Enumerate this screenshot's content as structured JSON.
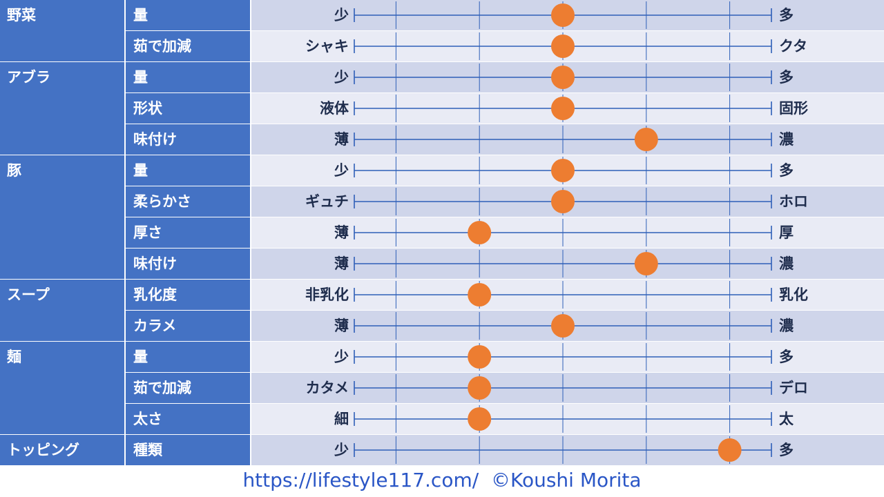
{
  "colors": {
    "header_bg": "#4472c4",
    "row_dark": "#cfd5ea",
    "row_light": "#e9ebf5",
    "axis_line": "#2e5fb8",
    "marker": "#ed7d31",
    "label_text": "#1f2d4d"
  },
  "footer": {
    "url": "https://lifestyle117.com/",
    "credit": "©Koushi Morita"
  },
  "chart_data": {
    "type": "scatter",
    "scale_min": 0,
    "scale_max": 5,
    "ticks": [
      0,
      0.5,
      1.5,
      2.5,
      3.5,
      4.5,
      5
    ],
    "groups": [
      {
        "label": "野菜",
        "items": [
          {
            "label": "量",
            "min_label": "少",
            "max_label": "多",
            "value": 2.5
          },
          {
            "label": "茹で加減",
            "min_label": "シャキ",
            "max_label": "クタ",
            "value": 2.5
          }
        ]
      },
      {
        "label": "アブラ",
        "items": [
          {
            "label": "量",
            "min_label": "少",
            "max_label": "多",
            "value": 2.5
          },
          {
            "label": "形状",
            "min_label": "液体",
            "max_label": "固形",
            "value": 2.5
          },
          {
            "label": "味付け",
            "min_label": "薄",
            "max_label": "濃",
            "value": 3.5
          }
        ]
      },
      {
        "label": "豚",
        "items": [
          {
            "label": "量",
            "min_label": "少",
            "max_label": "多",
            "value": 2.5
          },
          {
            "label": "柔らかさ",
            "min_label": "ギュチ",
            "max_label": "ホロ",
            "value": 2.5
          },
          {
            "label": "厚さ",
            "min_label": "薄",
            "max_label": "厚",
            "value": 1.5
          },
          {
            "label": "味付け",
            "min_label": "薄",
            "max_label": "濃",
            "value": 3.5
          }
        ]
      },
      {
        "label": "スープ",
        "items": [
          {
            "label": "乳化度",
            "min_label": "非乳化",
            "max_label": "乳化",
            "value": 1.5
          },
          {
            "label": "カラメ",
            "min_label": "薄",
            "max_label": "濃",
            "value": 2.5
          }
        ]
      },
      {
        "label": "麺",
        "items": [
          {
            "label": "量",
            "min_label": "少",
            "max_label": "多",
            "value": 1.5
          },
          {
            "label": "茹で加減",
            "min_label": "カタメ",
            "max_label": "デロ",
            "value": 1.5
          },
          {
            "label": "太さ",
            "min_label": "細",
            "max_label": "太",
            "value": 1.5
          }
        ]
      },
      {
        "label": "トッピング",
        "items": [
          {
            "label": "種類",
            "min_label": "少",
            "max_label": "多",
            "value": 4.5
          }
        ]
      }
    ]
  }
}
